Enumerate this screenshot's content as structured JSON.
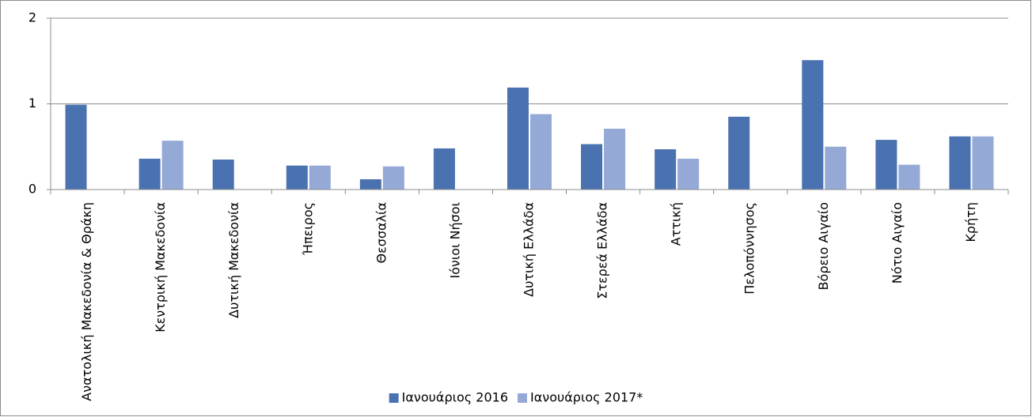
{
  "chart_data": {
    "type": "bar",
    "categories": [
      "Ανατολική Μακεδονία & Θράκη",
      "Κεντρική Μακεδονία",
      "Δυτική Μακεδονία",
      "Ήπειρος",
      "Θεσσαλία",
      "Ιόνιοι Νήσοι",
      "Δυτική Ελλάδα",
      "Στερεά Ελλάδα",
      "Αττική",
      "Πελοπόννησος",
      "Βόρειο Αιγαίο",
      "Νότιο Αιγαίο",
      "Κρήτη"
    ],
    "series": [
      {
        "name": "Ιανουάριος 2016",
        "color": "#4a72b0",
        "values": [
          0.99,
          0.36,
          0.35,
          0.28,
          0.12,
          0.48,
          1.19,
          0.53,
          0.47,
          0.85,
          1.51,
          0.58,
          0.62
        ]
      },
      {
        "name": "Ιανουάριος 2017*",
        "color": "#95a9d6",
        "values": [
          0,
          0.57,
          0,
          0.28,
          0.27,
          0,
          0.88,
          0.71,
          0.36,
          0,
          0.5,
          0.29,
          0.62
        ]
      }
    ],
    "ylim": [
      0,
      2
    ],
    "yticks": [
      0,
      1,
      2
    ],
    "grid": true,
    "legend": "bottom"
  }
}
